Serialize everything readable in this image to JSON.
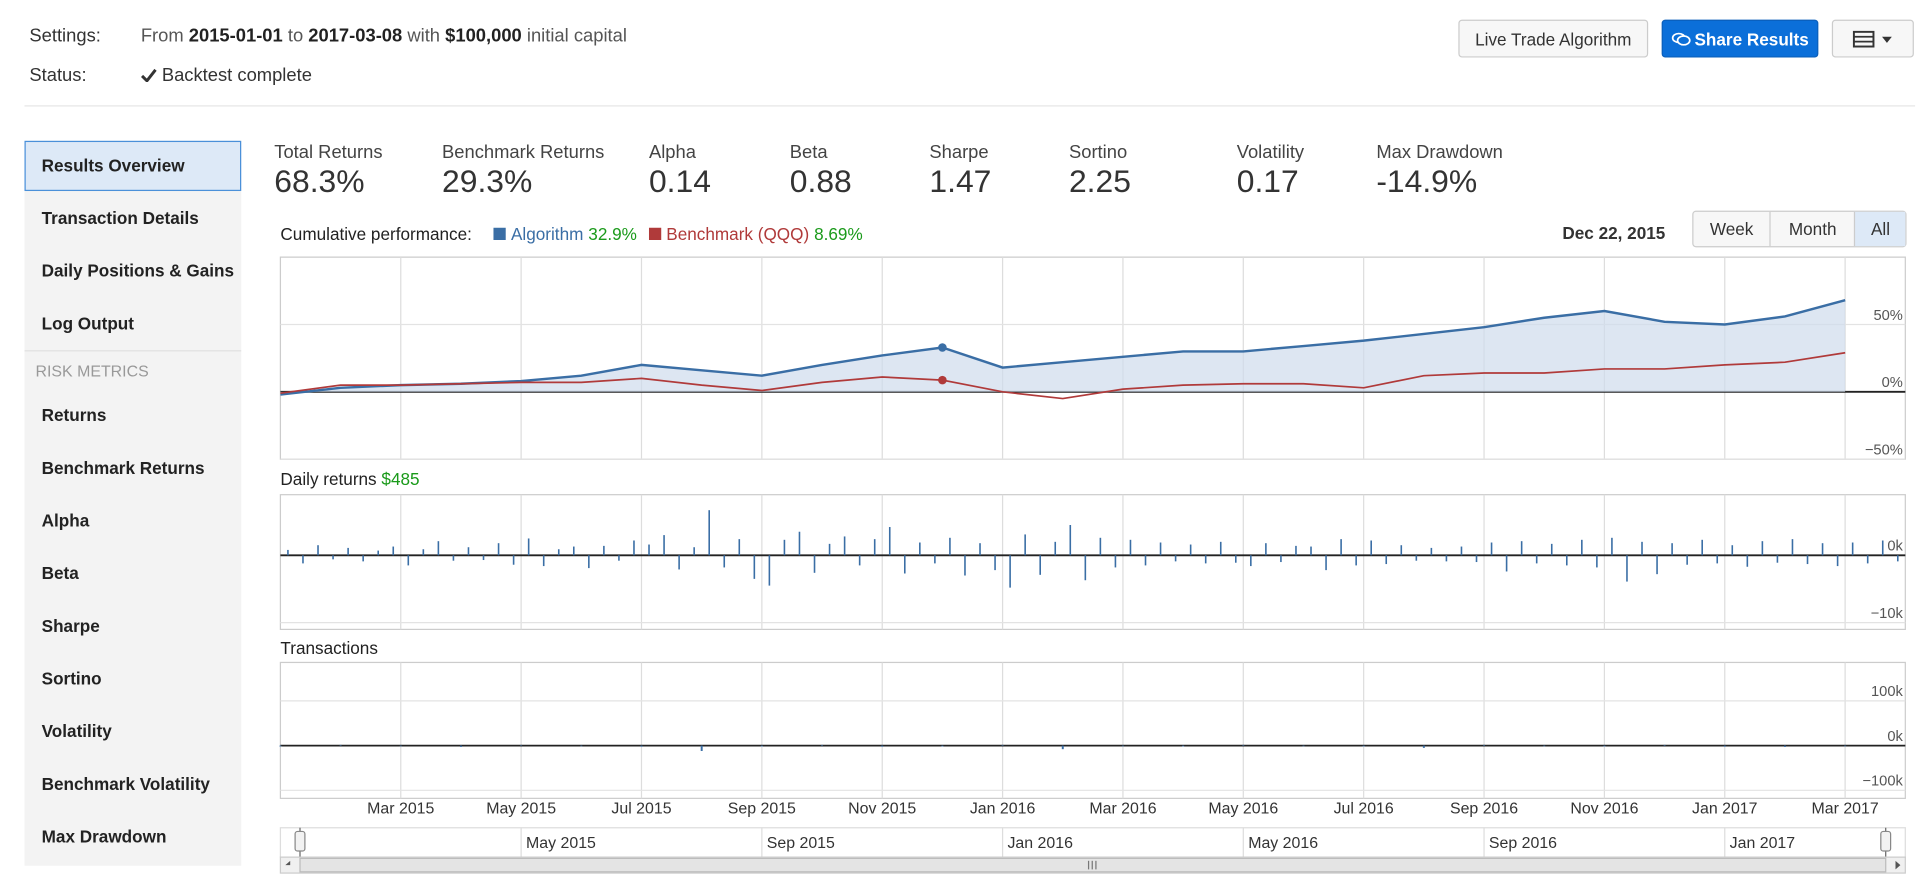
{
  "header": {
    "settings_label": "Settings:",
    "from": "From",
    "start": "2015-01-01",
    "to": "to",
    "end": "2017-03-08",
    "with": "with",
    "capital": "$100,000",
    "capital_suffix": "initial capital",
    "status_label": "Status:",
    "status": "Backtest complete"
  },
  "buttons": {
    "live": "Live Trade Algorithm",
    "share": "Share Results"
  },
  "sidebar": {
    "items": [
      "Results Overview",
      "Transaction Details",
      "Daily Positions & Gains",
      "Log Output"
    ],
    "section": "RISK METRICS",
    "risk_items": [
      "Returns",
      "Benchmark Returns",
      "Alpha",
      "Beta",
      "Sharpe",
      "Sortino",
      "Volatility",
      "Benchmark Volatility",
      "Max Drawdown"
    ]
  },
  "metrics": [
    {
      "label": "Total Returns",
      "value": "68.3%"
    },
    {
      "label": "Benchmark Returns",
      "value": "29.3%"
    },
    {
      "label": "Alpha",
      "value": "0.14"
    },
    {
      "label": "Beta",
      "value": "0.88"
    },
    {
      "label": "Sharpe",
      "value": "1.47"
    },
    {
      "label": "Sortino",
      "value": "2.25"
    },
    {
      "label": "Volatility",
      "value": "0.17"
    },
    {
      "label": "Max Drawdown",
      "value": "-14.9%"
    }
  ],
  "ranges": [
    "Week",
    "Month",
    "All"
  ],
  "chart_data": [
    {
      "type": "line",
      "title": "Cumulative performance:",
      "date": "Dec 22, 2015",
      "x": [
        "2015-01",
        "2015-02",
        "2015-03",
        "2015-04",
        "2015-05",
        "2015-06",
        "2015-07",
        "2015-08",
        "2015-09",
        "2015-10",
        "2015-11",
        "2015-12",
        "2016-01",
        "2016-02",
        "2016-03",
        "2016-04",
        "2016-05",
        "2016-06",
        "2016-07",
        "2016-08",
        "2016-09",
        "2016-10",
        "2016-11",
        "2016-12",
        "2017-01",
        "2017-02",
        "2017-03"
      ],
      "xlim": [
        "2015-01",
        "2017-04"
      ],
      "xticks": [
        "Mar 2015",
        "May 2015",
        "Jul 2015",
        "Sep 2015",
        "Nov 2015",
        "Jan 2016",
        "Mar 2016",
        "May 2016",
        "Jul 2016",
        "Sep 2016",
        "Nov 2016",
        "Jan 2017",
        "Mar 2017"
      ],
      "ylim": [
        -50,
        100
      ],
      "yticks": [
        {
          "value": 50,
          "label": "50%"
        },
        {
          "value": 0,
          "label": "0%"
        },
        {
          "value": -50,
          "label": "−50%"
        }
      ],
      "series": [
        {
          "name": "Algorithm",
          "color": "#3a6ea5",
          "value_label": "32.9%",
          "values": [
            -2,
            3,
            5,
            6,
            8,
            12,
            20,
            16,
            12,
            20,
            27,
            32.9,
            18,
            22,
            26,
            30,
            30,
            34,
            38,
            43,
            48,
            55,
            60,
            52,
            50,
            56,
            68
          ]
        },
        {
          "name": "Benchmark (QQQ)",
          "color": "#b03a3a",
          "value_label": "8.69%",
          "values": [
            -1,
            5,
            5,
            6,
            7,
            7,
            10,
            5,
            1,
            7,
            11,
            8.69,
            0,
            -5,
            2,
            5,
            6,
            6,
            3,
            12,
            14,
            14,
            17,
            17,
            20,
            22,
            29
          ]
        }
      ]
    },
    {
      "type": "bar",
      "title": "Daily returns",
      "value_label": "$485",
      "color": "#3a6ea5",
      "ylim": [
        -11000,
        9000
      ],
      "yticks": [
        {
          "value": 0,
          "label": "0k"
        },
        {
          "value": -10000,
          "label": "−10k"
        }
      ],
      "values": [
        800,
        -1200,
        1500,
        -600,
        1100,
        -900,
        700,
        1300,
        -1500,
        900,
        2100,
        -800,
        1200,
        -700,
        1800,
        -1400,
        2500,
        -1600,
        900,
        1300,
        -1900,
        1400,
        -800,
        2200,
        1600,
        3000,
        -2100,
        1200,
        6700,
        -1800,
        2400,
        -3500,
        -4500,
        2300,
        3500,
        -2600,
        1700,
        2800,
        -1500,
        2400,
        4200,
        -2700,
        1900,
        -1200,
        2600,
        -3000,
        1800,
        -2200,
        -4800,
        3100,
        -2900,
        2000,
        4500,
        -3700,
        2600,
        -1800,
        2300,
        -1500,
        1900,
        -900,
        1600,
        -1200,
        2000,
        -1100,
        -1600,
        1800,
        -1000,
        1400,
        1300,
        -2200,
        2400,
        -1500,
        2200,
        -1300,
        1500,
        -800,
        1100,
        -900,
        1300,
        -1000,
        1900,
        -2400,
        2100,
        -1200,
        1700,
        -1500,
        2300,
        -1800,
        2600,
        -3900,
        2000,
        -2800,
        1800,
        -1400,
        2300,
        -1200,
        1500,
        -1700,
        2100,
        -1100,
        2400,
        -1300,
        1800,
        -1600,
        1900,
        -1200,
        2200,
        -900
      ]
    },
    {
      "type": "bar",
      "title": "Transactions",
      "color": "#3a6ea5",
      "ylim": [
        -118000,
        186000
      ],
      "yticks": [
        {
          "value": 100000,
          "label": "100k"
        },
        {
          "value": 0,
          "label": "0k"
        },
        {
          "value": -100000,
          "label": "−100k"
        }
      ],
      "x": [
        "2015-01",
        "2015-02",
        "2015-03",
        "2015-04",
        "2015-05",
        "2015-06",
        "2015-07",
        "2015-08",
        "2015-09",
        "2015-10",
        "2015-11",
        "2015-12",
        "2016-01",
        "2016-02",
        "2016-03",
        "2016-04",
        "2016-05",
        "2016-06",
        "2016-07",
        "2016-08",
        "2016-09",
        "2016-10",
        "2016-11",
        "2016-12",
        "2017-01",
        "2017-02",
        "2017-03"
      ],
      "values": [
        -2000,
        1500,
        -1500,
        -3000,
        1200,
        -1500,
        -2500,
        -12000,
        -2000,
        1500,
        -2500,
        -2000,
        1500,
        -8000,
        -1500,
        -2000,
        1500,
        -1500,
        -2000,
        -5000,
        1500,
        -1500,
        -2000,
        1500,
        -2500,
        -3000,
        -1500
      ]
    }
  ],
  "navigator": {
    "xticks": [
      "May 2015",
      "Sep 2015",
      "Jan 2016",
      "May 2016",
      "Sep 2016",
      "Jan 2017"
    ]
  }
}
